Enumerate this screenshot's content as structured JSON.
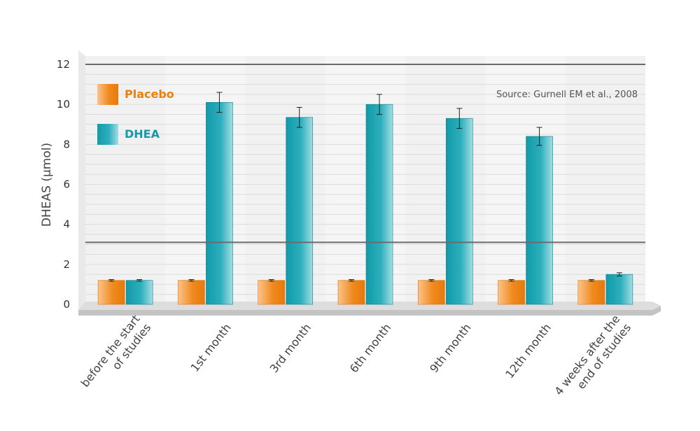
{
  "chart_data": {
    "type": "bar",
    "title": "",
    "xlabel": "",
    "ylabel": "DHEAS (µmol)",
    "ylim": [
      0,
      12
    ],
    "yticks": [
      0,
      2,
      4,
      6,
      8,
      10,
      12
    ],
    "categories": [
      [
        "before the start",
        "of studies"
      ],
      [
        "1st month"
      ],
      [
        "3rd month"
      ],
      [
        "6th month"
      ],
      [
        "9th month"
      ],
      [
        "12th month"
      ],
      [
        "4 weeks after the",
        "end of studies"
      ]
    ],
    "series": [
      {
        "name": "Placebo",
        "color": "#f08a1e",
        "values": [
          1.2,
          1.2,
          1.2,
          1.2,
          1.2,
          1.2,
          1.2
        ],
        "errors": [
          0.04,
          0.04,
          0.04,
          0.04,
          0.04,
          0.04,
          0.04
        ]
      },
      {
        "name": "DHEA",
        "color": "#169aa7",
        "values": [
          1.2,
          10.1,
          9.35,
          10.0,
          9.3,
          8.4,
          1.5
        ],
        "errors": [
          0.04,
          0.5,
          0.5,
          0.5,
          0.5,
          0.45,
          0.08
        ]
      }
    ],
    "reference_lines": [
      12,
      3.1
    ],
    "legend_position": "top-left",
    "annotation": "Source: Gurnell EM et al., 2008",
    "grid": true
  }
}
